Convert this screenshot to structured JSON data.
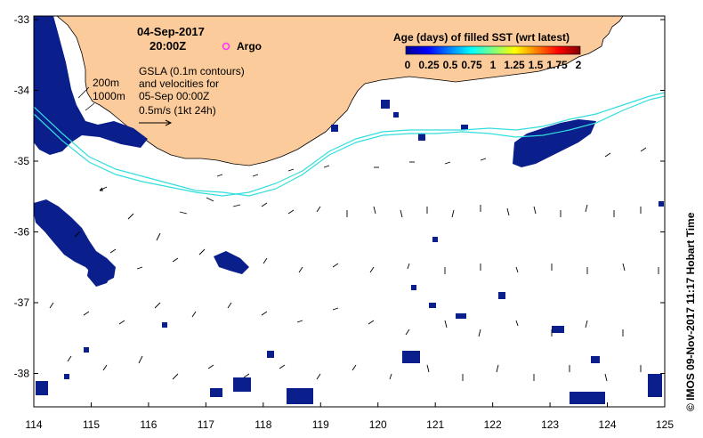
{
  "map": {
    "title_date": "04-Sep-2017",
    "title_time": "20:00Z",
    "argo_label": "Argo",
    "gsla_lines": [
      "GSLA (0.1m contours)",
      "and velocities for",
      "05-Sep 00:00Z",
      "0.5m/s (1kt 24h)"
    ],
    "depth_labels": [
      "200m",
      "1000m"
    ],
    "colorbar_title": "Age (days) of filled SST (wrt latest)",
    "colorbar_ticks": [
      "0",
      "0.25",
      "0.5",
      "0.75",
      "1",
      "1.25",
      "1.5",
      "1.75",
      "2"
    ],
    "x_ticks": [
      "114",
      "115",
      "116",
      "117",
      "118",
      "119",
      "120",
      "121",
      "122",
      "123",
      "124",
      "125"
    ],
    "y_ticks": [
      "-33",
      "-34",
      "-35",
      "-36",
      "-37",
      "-38"
    ],
    "credit": "© IMOS 09-Nov-2017 11:17 Hobart Time",
    "colors": {
      "land": "#fbcb9b",
      "sst": "#0a1e8c",
      "contour": "#33dddd",
      "argo": "#ff33ff"
    }
  }
}
